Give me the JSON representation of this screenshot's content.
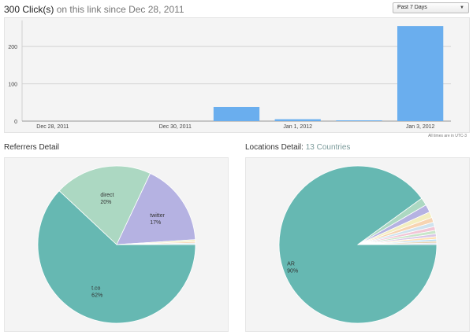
{
  "header": {
    "count_text": "300 Click(s)",
    "rest_text": "on this link since Dec 28, 2011"
  },
  "range_select": {
    "selected": "Past 7 Days"
  },
  "timezone_note": "All times are in UTC-3",
  "referrers": {
    "title": "Referrers Detail"
  },
  "locations": {
    "title": "Locations Detail:",
    "count": "13 Countries"
  },
  "chart_data": [
    {
      "type": "bar",
      "categories": [
        "Dec 28, 2011",
        "Dec 29, 2011",
        "Dec 30, 2011",
        "Dec 31, 2011",
        "Jan 1, 2012",
        "Jan 2, 2012",
        "Jan 3, 2012"
      ],
      "category_labels": [
        "Dec 28, 2011",
        "",
        "Dec 30, 2011",
        "",
        "Jan 1, 2012",
        "",
        "Jan 3, 2012"
      ],
      "values": [
        0,
        0,
        0,
        38,
        5,
        2,
        255
      ],
      "yticks": [
        0,
        100,
        200
      ],
      "ylim": [
        0,
        270
      ],
      "grid": true,
      "color": "#6aaeee"
    },
    {
      "type": "pie",
      "slices": [
        {
          "label": "t.co",
          "percent_label": "62%",
          "value": 62,
          "color": "#66b8b2"
        },
        {
          "label": "direct",
          "percent_label": "20%",
          "value": 20,
          "color": "#acd8c2"
        },
        {
          "label": "twitter",
          "percent_label": "17%",
          "value": 17,
          "color": "#b5b2e2"
        },
        {
          "label": "",
          "percent_label": "",
          "value": 0.4,
          "color": "#f3eec0"
        },
        {
          "label": "",
          "percent_label": "",
          "value": 0.3,
          "color": "#f7d4b2"
        },
        {
          "label": "",
          "percent_label": "",
          "value": 0.3,
          "color": "#cfe3ef"
        }
      ]
    },
    {
      "type": "pie",
      "slices": [
        {
          "label": "AR",
          "percent_label": "90%",
          "value": 90,
          "color": "#66b8b2"
        },
        {
          "label": "",
          "percent_label": "",
          "value": 1.6,
          "color": "#acd8c2"
        },
        {
          "label": "",
          "percent_label": "",
          "value": 1.6,
          "color": "#b5b2e2"
        },
        {
          "label": "",
          "percent_label": "",
          "value": 1.2,
          "color": "#f3eec0"
        },
        {
          "label": "",
          "percent_label": "",
          "value": 1.0,
          "color": "#f7d4b2"
        },
        {
          "label": "",
          "percent_label": "",
          "value": 0.9,
          "color": "#cfe3ef"
        },
        {
          "label": "",
          "percent_label": "",
          "value": 0.8,
          "color": "#f2c6d6"
        },
        {
          "label": "",
          "percent_label": "",
          "value": 0.7,
          "color": "#c8e6c9"
        },
        {
          "label": "",
          "percent_label": "",
          "value": 0.6,
          "color": "#d9c8e8"
        },
        {
          "label": "",
          "percent_label": "",
          "value": 0.5,
          "color": "#ffe0b2"
        },
        {
          "label": "",
          "percent_label": "",
          "value": 0.4,
          "color": "#b3d9f2"
        },
        {
          "label": "",
          "percent_label": "",
          "value": 0.4,
          "color": "#e6d3b3"
        },
        {
          "label": "",
          "percent_label": "",
          "value": 0.3,
          "color": "#d3d3e8"
        }
      ]
    }
  ]
}
